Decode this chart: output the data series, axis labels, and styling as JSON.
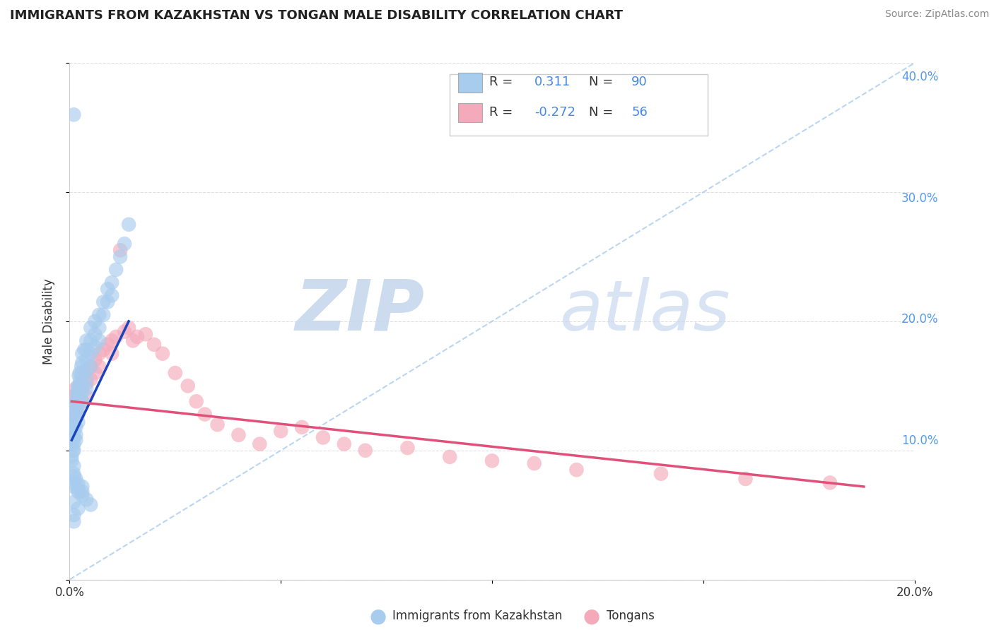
{
  "title": "IMMIGRANTS FROM KAZAKHSTAN VS TONGAN MALE DISABILITY CORRELATION CHART",
  "source": "Source: ZipAtlas.com",
  "ylabel": "Male Disability",
  "xlim": [
    0.0,
    0.2
  ],
  "ylim": [
    0.0,
    0.4
  ],
  "blue_color": "#A8CCEE",
  "pink_color": "#F4AABB",
  "blue_line_color": "#1A44BB",
  "pink_line_color": "#E0507A",
  "ref_line_color": "#AACCEE",
  "grid_color": "#DDDDDD",
  "background_color": "#FFFFFF",
  "r1": 0.311,
  "n1": 90,
  "r2": -0.272,
  "n2": 56,
  "blue_scatter_x": [
    0.0005,
    0.0005,
    0.0005,
    0.0008,
    0.0008,
    0.001,
    0.001,
    0.001,
    0.001,
    0.001,
    0.001,
    0.0012,
    0.0012,
    0.0014,
    0.0015,
    0.0015,
    0.0015,
    0.0015,
    0.0015,
    0.0016,
    0.0016,
    0.0018,
    0.0018,
    0.002,
    0.002,
    0.002,
    0.002,
    0.002,
    0.002,
    0.0022,
    0.0022,
    0.0022,
    0.0024,
    0.0025,
    0.0025,
    0.0025,
    0.0028,
    0.003,
    0.003,
    0.003,
    0.003,
    0.003,
    0.003,
    0.0035,
    0.004,
    0.004,
    0.004,
    0.004,
    0.004,
    0.004,
    0.005,
    0.005,
    0.005,
    0.005,
    0.006,
    0.006,
    0.006,
    0.007,
    0.007,
    0.007,
    0.008,
    0.008,
    0.009,
    0.009,
    0.01,
    0.01,
    0.011,
    0.012,
    0.013,
    0.014,
    0.0005,
    0.001,
    0.001,
    0.0015,
    0.002,
    0.002,
    0.003,
    0.003,
    0.004,
    0.005,
    0.001,
    0.002,
    0.001,
    0.001,
    0.001,
    0.002,
    0.003,
    0.001,
    0.001,
    0.001
  ],
  "blue_scatter_y": [
    0.115,
    0.105,
    0.095,
    0.11,
    0.1,
    0.125,
    0.12,
    0.115,
    0.11,
    0.105,
    0.1,
    0.13,
    0.12,
    0.135,
    0.13,
    0.125,
    0.118,
    0.112,
    0.108,
    0.14,
    0.132,
    0.145,
    0.138,
    0.15,
    0.145,
    0.14,
    0.135,
    0.128,
    0.122,
    0.158,
    0.15,
    0.143,
    0.16,
    0.155,
    0.148,
    0.14,
    0.165,
    0.175,
    0.168,
    0.16,
    0.152,
    0.145,
    0.138,
    0.178,
    0.185,
    0.178,
    0.17,
    0.162,
    0.155,
    0.148,
    0.195,
    0.185,
    0.175,
    0.165,
    0.2,
    0.19,
    0.18,
    0.205,
    0.195,
    0.185,
    0.215,
    0.205,
    0.225,
    0.215,
    0.23,
    0.22,
    0.24,
    0.25,
    0.26,
    0.275,
    0.092,
    0.088,
    0.082,
    0.078,
    0.074,
    0.07,
    0.068,
    0.065,
    0.062,
    0.058,
    0.36,
    0.055,
    0.05,
    0.045,
    0.072,
    0.068,
    0.072,
    0.08,
    0.075,
    0.06
  ],
  "pink_scatter_x": [
    0.0005,
    0.0005,
    0.001,
    0.001,
    0.001,
    0.0015,
    0.0015,
    0.002,
    0.002,
    0.002,
    0.0025,
    0.003,
    0.003,
    0.003,
    0.004,
    0.004,
    0.004,
    0.005,
    0.005,
    0.006,
    0.006,
    0.007,
    0.007,
    0.008,
    0.009,
    0.01,
    0.01,
    0.011,
    0.012,
    0.013,
    0.014,
    0.015,
    0.016,
    0.018,
    0.02,
    0.022,
    0.025,
    0.028,
    0.03,
    0.032,
    0.035,
    0.04,
    0.045,
    0.05,
    0.055,
    0.06,
    0.065,
    0.07,
    0.08,
    0.09,
    0.1,
    0.11,
    0.12,
    0.14,
    0.16,
    0.18
  ],
  "pink_scatter_y": [
    0.135,
    0.128,
    0.142,
    0.135,
    0.128,
    0.148,
    0.14,
    0.145,
    0.138,
    0.13,
    0.15,
    0.158,
    0.148,
    0.138,
    0.162,
    0.152,
    0.142,
    0.165,
    0.155,
    0.17,
    0.16,
    0.175,
    0.165,
    0.178,
    0.182,
    0.185,
    0.175,
    0.188,
    0.255,
    0.192,
    0.195,
    0.185,
    0.188,
    0.19,
    0.182,
    0.175,
    0.16,
    0.15,
    0.138,
    0.128,
    0.12,
    0.112,
    0.105,
    0.115,
    0.118,
    0.11,
    0.105,
    0.1,
    0.102,
    0.095,
    0.092,
    0.09,
    0.085,
    0.082,
    0.078,
    0.075
  ],
  "blue_trend_x": [
    0.0005,
    0.014
  ],
  "blue_trend_y_start": 0.108,
  "blue_trend_y_end": 0.2,
  "pink_trend_x": [
    0.0005,
    0.188
  ],
  "pink_trend_y_start": 0.138,
  "pink_trend_y_end": 0.072
}
